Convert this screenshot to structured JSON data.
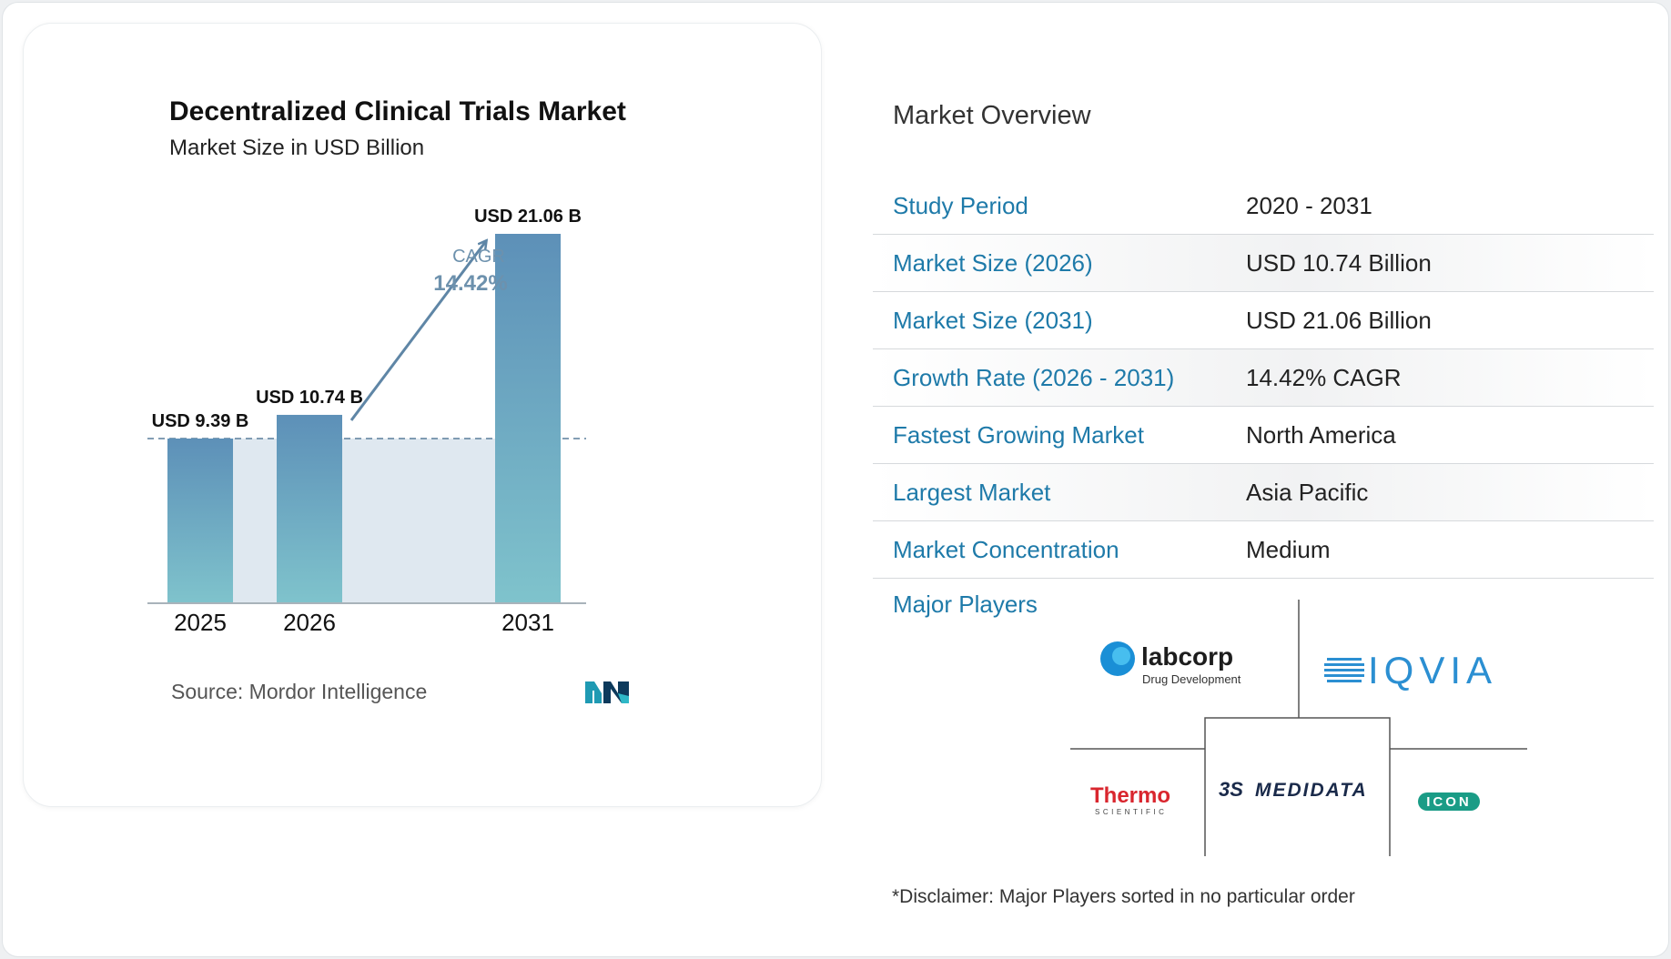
{
  "chart_data": {
    "type": "bar",
    "title": "Decentralized Clinical Trials Market",
    "subtitle": "Market Size in USD Billion",
    "categories": [
      "2025",
      "2026",
      "2031"
    ],
    "values": [
      9.39,
      10.74,
      21.06
    ],
    "value_labels": [
      "USD 9.39 B",
      "USD 10.74 B",
      "USD 21.06 B"
    ],
    "cagr": {
      "label": "CAGR",
      "value": "14.42%"
    },
    "reference_line": "dashed at 2025 value",
    "ylim": [
      0,
      21.06
    ],
    "grid": false,
    "colors": {
      "bar_top": "#5d90b8",
      "bar_bottom": "#7fc3cc",
      "band": "#dfe8f0",
      "arrow": "#5f86a6"
    }
  },
  "source": "Source:  Mordor Intelligence",
  "overview": {
    "title": "Market Overview",
    "rows": [
      {
        "label": "Study Period",
        "value": "2020 - 2031"
      },
      {
        "label": "Market Size (2026)",
        "value": "USD 10.74 Billion"
      },
      {
        "label": "Market Size (2031)",
        "value": "USD 21.06 Billion"
      },
      {
        "label": "Growth Rate (2026 - 2031)",
        "value": "14.42% CAGR"
      },
      {
        "label": "Fastest Growing Market",
        "value": "North America"
      },
      {
        "label": "Largest Market",
        "value": "Asia Pacific"
      },
      {
        "label": "Market Concentration",
        "value": "Medium"
      }
    ]
  },
  "players": {
    "label": "Major Players",
    "logos": [
      {
        "name": "labcorp",
        "sub": "Drug Development",
        "icon": "labcorp-logo"
      },
      {
        "name": "IQVIA",
        "icon": "iqvia-logo"
      },
      {
        "name": "Thermo",
        "sub": "SCIENTIFIC",
        "icon": "thermo-logo"
      },
      {
        "name": "MEDIDATA",
        "prefix": "3S",
        "icon": "medidata-logo"
      },
      {
        "name": "ICON",
        "icon": "icon-logo"
      }
    ]
  },
  "disclaimer": "*Disclaimer: Major Players sorted in no particular order",
  "colors": {
    "accent": "#1e7aa9",
    "logo_mordor": "#1f9ab3"
  }
}
